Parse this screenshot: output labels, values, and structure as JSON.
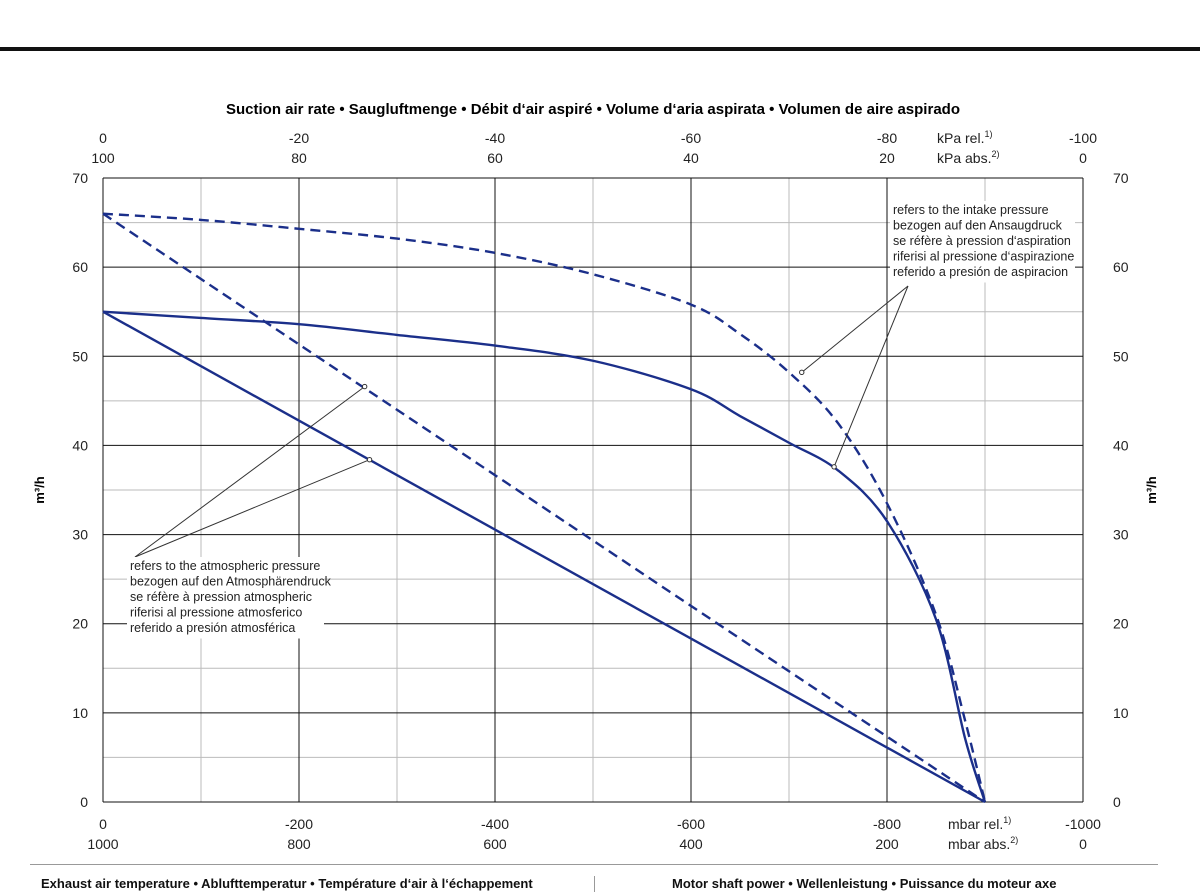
{
  "chart_data": {
    "type": "line",
    "title": "Suction air rate  •  Saugluftmenge  •  Débit d‘air aspiré  •  Volume d‘aria aspirata  •  Volumen de aire aspirado",
    "ylabel": "m³/h",
    "ylim": [
      0,
      70
    ],
    "y_ticks": [
      "0",
      "10",
      "20",
      "30",
      "40",
      "50",
      "60",
      "70"
    ],
    "xlim": [
      0,
      -1000
    ],
    "x_unit": "mbar",
    "bottom_axis": {
      "ticks_rel": [
        "0",
        "-200",
        "-400",
        "-600",
        "-800",
        "-1000"
      ],
      "ticks_abs": [
        "1000",
        "800",
        "600",
        "400",
        "200",
        "0"
      ],
      "unit_rel": "mbar rel.",
      "unit_abs": "mbar abs.",
      "sup_rel": "1)",
      "sup_abs": "2)"
    },
    "top_axis": {
      "ticks_rel": [
        "0",
        "-20",
        "-40",
        "-60",
        "-80",
        "-100"
      ],
      "ticks_abs": [
        "100",
        "80",
        "60",
        "40",
        "20",
        "0"
      ],
      "unit_rel": "kPa rel.",
      "unit_abs": "kPa abs.",
      "sup_rel": "1)",
      "sup_abs": "2)"
    },
    "grid": true,
    "series": [
      {
        "style": "solid",
        "x": [
          0,
          -100,
          -200,
          -300,
          -400,
          -500,
          -600,
          -650,
          -700,
          -750,
          -800,
          -850,
          -880,
          -900
        ],
        "y": [
          55,
          54.3,
          53.6,
          52.4,
          51.2,
          49.5,
          46.3,
          43.3,
          40.3,
          37.2,
          31.5,
          20.5,
          7,
          0
        ]
      },
      {
        "style": "solid",
        "x": [
          0,
          -900
        ],
        "y": [
          55,
          0
        ]
      },
      {
        "style": "dashed",
        "x": [
          0,
          -100,
          -200,
          -300,
          -400,
          -500,
          -600,
          -650,
          -700,
          -750,
          -800,
          -850,
          -880,
          -900
        ],
        "y": [
          66,
          65.3,
          64.3,
          63.2,
          61.6,
          59.2,
          55.8,
          52.5,
          48.2,
          42.5,
          33.5,
          21,
          9,
          0
        ]
      },
      {
        "style": "dashed",
        "x": [
          0,
          -900
        ],
        "y": [
          66,
          0
        ]
      }
    ],
    "annotations": [
      {
        "lines": [
          "refers to the intake pressure",
          "bezogen auf den Ansaugdruck",
          "se réfère à pression d‘aspiration",
          "riferisi al pressione d‘aspirazione",
          "referido a presión de aspiracion"
        ]
      },
      {
        "lines": [
          "refers to the atmospheric pressure",
          "bezogen auf den Atmosphärendruck",
          "se réfère à pression atmospheric",
          "riferisi al pressione atmosferico",
          "referido a presión atmosférica"
        ]
      }
    ],
    "colors": {
      "series": "#1b2f8a",
      "grid_major": "#111111",
      "grid_minor": "#bbbbbb"
    }
  },
  "footer": {
    "left": "Exhaust air temperature  •  Ablufttemperatur  •  Température d‘air à l‘échappement",
    "right": "Motor shaft power  •  Wellenleistung  •  Puissance du moteur axe"
  }
}
